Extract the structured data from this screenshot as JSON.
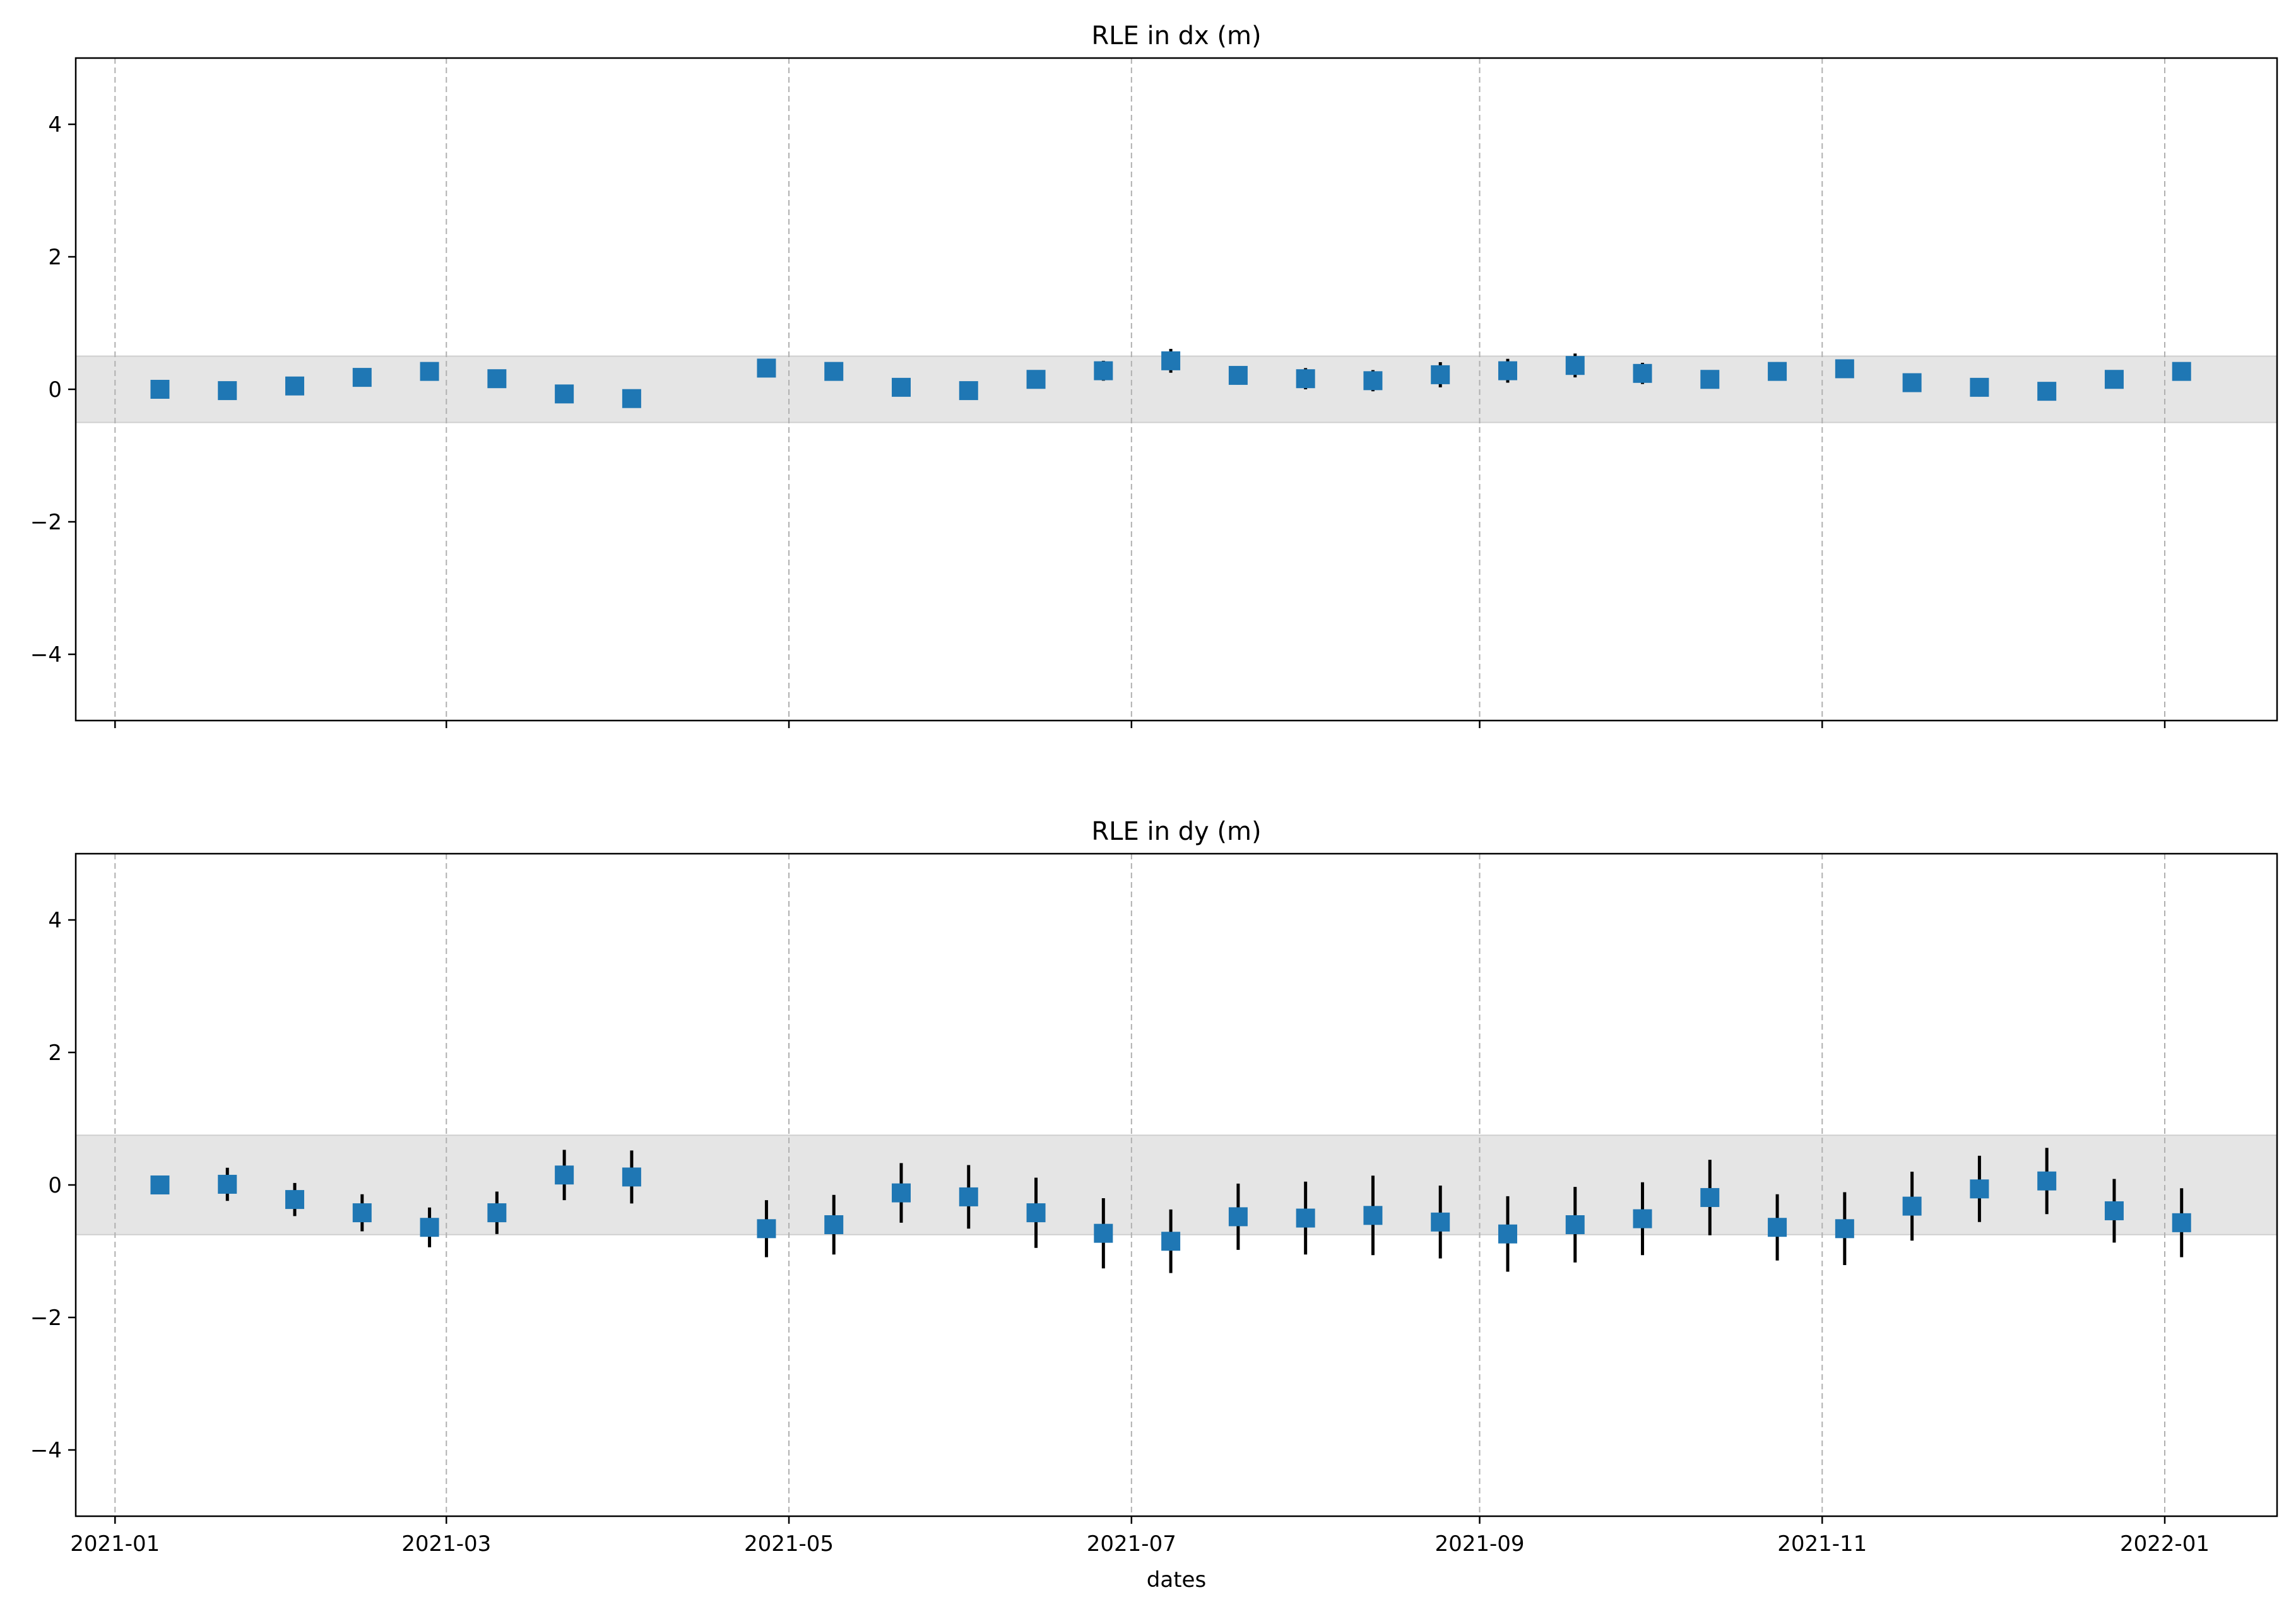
{
  "chart_data": [
    {
      "type": "scatter",
      "title": "RLE in dx (m)",
      "xlabel": "",
      "ylabel": "",
      "xlim": [
        "2020-12-25",
        "2022-01-21"
      ],
      "ylim": [
        -5,
        5
      ],
      "yticks": [
        -4,
        -2,
        0,
        2,
        4
      ],
      "ytick_labels": [
        "−4",
        "−2",
        "0",
        "2",
        "4"
      ],
      "xticks": [
        "2021-01-01",
        "2021-03-01",
        "2021-05-01",
        "2021-07-01",
        "2021-09-01",
        "2021-11-01",
        "2022-01-01"
      ],
      "xtick_labels": [],
      "grid": "x-dashed",
      "band": [
        -0.5,
        0.5
      ],
      "band_color": "#e5e5e5",
      "marker_color": "#1f77b4",
      "errorbar_color": "#000000",
      "dates": [
        "2021-01-09",
        "2021-01-21",
        "2021-02-02",
        "2021-02-14",
        "2021-02-26",
        "2021-03-10",
        "2021-03-22",
        "2021-04-03",
        "2021-04-27",
        "2021-05-09",
        "2021-05-21",
        "2021-06-02",
        "2021-06-14",
        "2021-06-26",
        "2021-07-08",
        "2021-07-20",
        "2021-08-01",
        "2021-08-13",
        "2021-08-25",
        "2021-09-06",
        "2021-09-18",
        "2021-09-30",
        "2021-10-12",
        "2021-10-24",
        "2021-11-05",
        "2021-11-17",
        "2021-11-29",
        "2021-12-11",
        "2021-12-23",
        "2022-01-04"
      ],
      "values": [
        0.0,
        -0.02,
        0.05,
        0.18,
        0.27,
        0.16,
        -0.07,
        -0.14,
        0.32,
        0.27,
        0.03,
        -0.02,
        0.15,
        0.28,
        0.43,
        0.21,
        0.16,
        0.13,
        0.22,
        0.28,
        0.36,
        0.24,
        0.15,
        0.27,
        0.31,
        0.1,
        0.03,
        -0.03,
        0.15,
        0.27
      ],
      "errors": [
        0.0,
        0.03,
        0.05,
        0.06,
        0.06,
        0.06,
        0.07,
        0.07,
        0.1,
        0.1,
        0.09,
        0.09,
        0.11,
        0.15,
        0.18,
        0.14,
        0.16,
        0.16,
        0.19,
        0.18,
        0.18,
        0.16,
        0.14,
        0.14,
        0.12,
        0.13,
        0.14,
        0.13,
        0.11,
        0.1
      ]
    },
    {
      "type": "scatter",
      "title": "RLE in dy (m)",
      "xlabel": "dates",
      "ylabel": "",
      "xlim": [
        "2020-12-25",
        "2022-01-21"
      ],
      "ylim": [
        -5,
        5
      ],
      "yticks": [
        -4,
        -2,
        0,
        2,
        4
      ],
      "ytick_labels": [
        "−4",
        "−2",
        "0",
        "2",
        "4"
      ],
      "xticks": [
        "2021-01-01",
        "2021-03-01",
        "2021-05-01",
        "2021-07-01",
        "2021-09-01",
        "2021-11-01",
        "2022-01-01"
      ],
      "xtick_labels": [
        "2021-01",
        "2021-03",
        "2021-05",
        "2021-07",
        "2021-09",
        "2021-11",
        "2022-01"
      ],
      "grid": "x-dashed",
      "band": [
        -0.75,
        0.75
      ],
      "band_color": "#e5e5e5",
      "marker_color": "#1f77b4",
      "errorbar_color": "#000000",
      "dates": [
        "2021-01-09",
        "2021-01-21",
        "2021-02-02",
        "2021-02-14",
        "2021-02-26",
        "2021-03-10",
        "2021-03-22",
        "2021-04-03",
        "2021-04-27",
        "2021-05-09",
        "2021-05-21",
        "2021-06-02",
        "2021-06-14",
        "2021-06-26",
        "2021-07-08",
        "2021-07-20",
        "2021-08-01",
        "2021-08-13",
        "2021-08-25",
        "2021-09-06",
        "2021-09-18",
        "2021-09-30",
        "2021-10-12",
        "2021-10-24",
        "2021-11-05",
        "2021-11-17",
        "2021-11-29",
        "2021-12-11",
        "2021-12-23",
        "2022-01-04"
      ],
      "values": [
        0.0,
        0.01,
        -0.22,
        -0.42,
        -0.64,
        -0.42,
        0.15,
        0.12,
        -0.66,
        -0.6,
        -0.12,
        -0.18,
        -0.42,
        -0.73,
        -0.85,
        -0.48,
        -0.5,
        -0.46,
        -0.56,
        -0.74,
        -0.6,
        -0.51,
        -0.19,
        -0.64,
        -0.66,
        -0.32,
        -0.06,
        0.06,
        -0.39,
        -0.57
      ],
      "errors": [
        0.0,
        0.25,
        0.25,
        0.28,
        0.3,
        0.32,
        0.38,
        0.4,
        0.43,
        0.45,
        0.45,
        0.48,
        0.53,
        0.53,
        0.48,
        0.5,
        0.55,
        0.6,
        0.55,
        0.57,
        0.57,
        0.55,
        0.57,
        0.5,
        0.55,
        0.52,
        0.5,
        0.5,
        0.48,
        0.52
      ]
    }
  ]
}
